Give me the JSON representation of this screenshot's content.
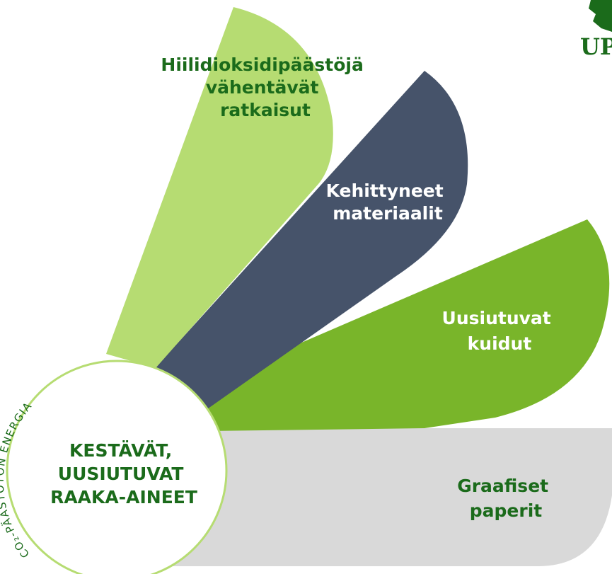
{
  "petals": [
    {
      "label": [
        "Hiilidioksidipäästöjä",
        "vähentävät",
        "ratkaisut"
      ]
    },
    {
      "label": [
        "Kehittyneet",
        "materiaalit"
      ]
    },
    {
      "label": [
        "Uusiutuvat",
        "kuidut"
      ]
    },
    {
      "label": [
        "Graafiset",
        "paperit"
      ]
    }
  ],
  "center": {
    "label": [
      "KESTÄVÄT,",
      "UUSIUTUVAT",
      "RAAKA-AINEET"
    ],
    "ring": "CO₂-PÄÄSTÖTÖN ENERGIA"
  },
  "logo": "UP"
}
